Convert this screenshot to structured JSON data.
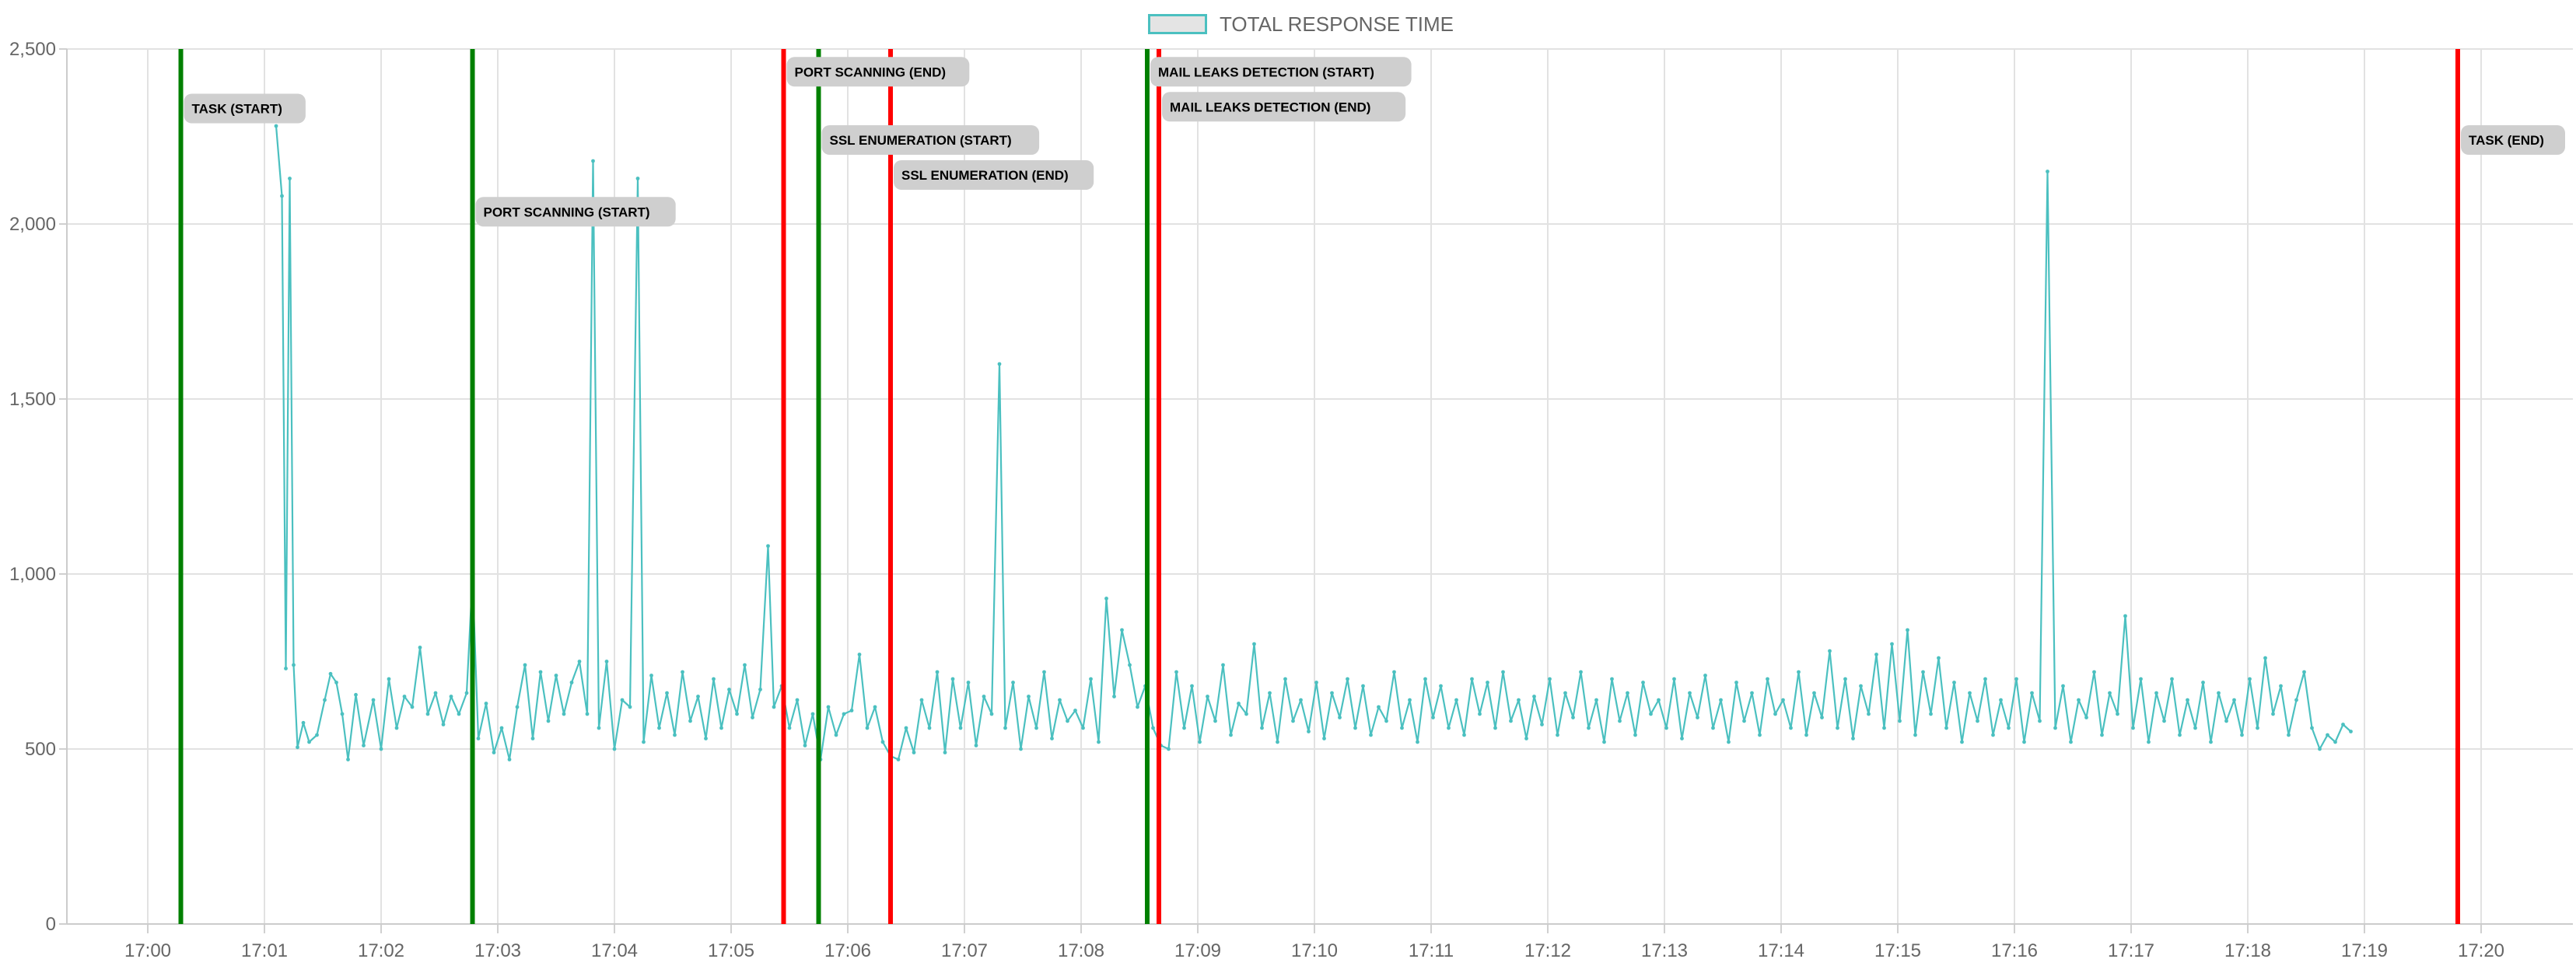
{
  "chart_data": {
    "type": "line",
    "title": "",
    "xlabel": "",
    "ylabel": "",
    "legend": {
      "position": "top-center",
      "entries": [
        "TOTAL RESPONSE TIME"
      ]
    },
    "grid": true,
    "x_range": [
      "17:00",
      "17:20"
    ],
    "ylim": [
      0,
      2500
    ],
    "x_tick_labels": [
      "17:00",
      "17:01",
      "17:02",
      "17:03",
      "17:04",
      "17:05",
      "17:06",
      "17:07",
      "17:08",
      "17:09",
      "17:10",
      "17:11",
      "17:12",
      "17:13",
      "17:14",
      "17:15",
      "17:16",
      "17:17",
      "17:18",
      "17:19",
      "17:20"
    ],
    "y_tick_labels": [
      "0",
      "500",
      "1,000",
      "1,500",
      "2,000",
      "2,500"
    ],
    "y_ticks": [
      0,
      500,
      1000,
      1500,
      2000,
      2500
    ],
    "series": [
      {
        "name": "TOTAL RESPONSE TIME",
        "color": "#4bc0c0",
        "points": [
          [
            "17:01:06",
            2280
          ],
          [
            "17:01:09",
            2080
          ],
          [
            "17:01:11",
            730
          ],
          [
            "17:01:13",
            2130
          ],
          [
            "17:01:15",
            740
          ],
          [
            "17:01:17",
            505
          ],
          [
            "17:01:20",
            575
          ],
          [
            "17:01:23",
            520
          ],
          [
            "17:01:27",
            540
          ],
          [
            "17:01:31",
            640
          ],
          [
            "17:01:34",
            715
          ],
          [
            "17:01:37",
            690
          ],
          [
            "17:01:40",
            600
          ],
          [
            "17:01:43",
            470
          ],
          [
            "17:01:47",
            655
          ],
          [
            "17:01:51",
            510
          ],
          [
            "17:01:56",
            640
          ],
          [
            "17:02:00",
            500
          ],
          [
            "17:02:04",
            700
          ],
          [
            "17:02:08",
            560
          ],
          [
            "17:02:12",
            650
          ],
          [
            "17:02:16",
            620
          ],
          [
            "17:02:20",
            790
          ],
          [
            "17:02:24",
            600
          ],
          [
            "17:02:28",
            660
          ],
          [
            "17:02:32",
            570
          ],
          [
            "17:02:36",
            650
          ],
          [
            "17:02:40",
            600
          ],
          [
            "17:02:44",
            660
          ],
          [
            "17:02:47",
            990
          ],
          [
            "17:02:50",
            530
          ],
          [
            "17:02:54",
            630
          ],
          [
            "17:02:58",
            490
          ],
          [
            "17:03:02",
            560
          ],
          [
            "17:03:06",
            470
          ],
          [
            "17:03:10",
            620
          ],
          [
            "17:03:14",
            740
          ],
          [
            "17:03:18",
            530
          ],
          [
            "17:03:22",
            720
          ],
          [
            "17:03:26",
            580
          ],
          [
            "17:03:30",
            710
          ],
          [
            "17:03:34",
            600
          ],
          [
            "17:03:38",
            690
          ],
          [
            "17:03:42",
            750
          ],
          [
            "17:03:46",
            600
          ],
          [
            "17:03:49",
            2180
          ],
          [
            "17:03:52",
            560
          ],
          [
            "17:03:56",
            750
          ],
          [
            "17:04:00",
            500
          ],
          [
            "17:04:04",
            640
          ],
          [
            "17:04:08",
            620
          ],
          [
            "17:04:12",
            2130
          ],
          [
            "17:04:15",
            520
          ],
          [
            "17:04:19",
            710
          ],
          [
            "17:04:23",
            560
          ],
          [
            "17:04:27",
            660
          ],
          [
            "17:04:31",
            540
          ],
          [
            "17:04:35",
            720
          ],
          [
            "17:04:39",
            580
          ],
          [
            "17:04:43",
            650
          ],
          [
            "17:04:47",
            530
          ],
          [
            "17:04:51",
            700
          ],
          [
            "17:04:55",
            560
          ],
          [
            "17:04:59",
            670
          ],
          [
            "17:05:03",
            600
          ],
          [
            "17:05:07",
            740
          ],
          [
            "17:05:11",
            590
          ],
          [
            "17:05:15",
            670
          ],
          [
            "17:05:19",
            1080
          ],
          [
            "17:05:22",
            620
          ],
          [
            "17:05:26",
            680
          ],
          [
            "17:05:30",
            560
          ],
          [
            "17:05:34",
            640
          ],
          [
            "17:05:38",
            510
          ],
          [
            "17:05:42",
            600
          ],
          [
            "17:05:46",
            470
          ],
          [
            "17:05:50",
            620
          ],
          [
            "17:05:54",
            540
          ],
          [
            "17:05:58",
            600
          ],
          [
            "17:06:02",
            610
          ],
          [
            "17:06:06",
            770
          ],
          [
            "17:06:10",
            560
          ],
          [
            "17:06:14",
            620
          ],
          [
            "17:06:18",
            520
          ],
          [
            "17:06:22",
            480
          ],
          [
            "17:06:26",
            470
          ],
          [
            "17:06:30",
            560
          ],
          [
            "17:06:34",
            490
          ],
          [
            "17:06:38",
            640
          ],
          [
            "17:06:42",
            560
          ],
          [
            "17:06:46",
            720
          ],
          [
            "17:06:50",
            490
          ],
          [
            "17:06:54",
            700
          ],
          [
            "17:06:58",
            560
          ],
          [
            "17:07:02",
            690
          ],
          [
            "17:07:06",
            510
          ],
          [
            "17:07:10",
            650
          ],
          [
            "17:07:14",
            600
          ],
          [
            "17:07:18",
            1600
          ],
          [
            "17:07:21",
            560
          ],
          [
            "17:07:25",
            690
          ],
          [
            "17:07:29",
            500
          ],
          [
            "17:07:33",
            650
          ],
          [
            "17:07:37",
            560
          ],
          [
            "17:07:41",
            720
          ],
          [
            "17:07:45",
            530
          ],
          [
            "17:07:49",
            640
          ],
          [
            "17:07:53",
            580
          ],
          [
            "17:07:57",
            610
          ],
          [
            "17:08:01",
            560
          ],
          [
            "17:08:05",
            700
          ],
          [
            "17:08:09",
            520
          ],
          [
            "17:08:13",
            930
          ],
          [
            "17:08:17",
            650
          ],
          [
            "17:08:21",
            840
          ],
          [
            "17:08:25",
            740
          ],
          [
            "17:08:29",
            620
          ],
          [
            "17:08:33",
            680
          ],
          [
            "17:08:37",
            560
          ],
          [
            "17:08:41",
            510
          ],
          [
            "17:08:45",
            500
          ],
          [
            "17:08:49",
            720
          ],
          [
            "17:08:53",
            560
          ],
          [
            "17:08:57",
            680
          ],
          [
            "17:09:01",
            520
          ],
          [
            "17:09:05",
            650
          ],
          [
            "17:09:09",
            580
          ],
          [
            "17:09:13",
            740
          ],
          [
            "17:09:17",
            540
          ],
          [
            "17:09:21",
            630
          ],
          [
            "17:09:25",
            600
          ],
          [
            "17:09:29",
            800
          ],
          [
            "17:09:33",
            560
          ],
          [
            "17:09:37",
            660
          ],
          [
            "17:09:41",
            520
          ],
          [
            "17:09:45",
            700
          ],
          [
            "17:09:49",
            580
          ],
          [
            "17:09:53",
            640
          ],
          [
            "17:09:57",
            550
          ],
          [
            "17:10:01",
            690
          ],
          [
            "17:10:05",
            530
          ],
          [
            "17:10:09",
            660
          ],
          [
            "17:10:13",
            590
          ],
          [
            "17:10:17",
            700
          ],
          [
            "17:10:21",
            560
          ],
          [
            "17:10:25",
            680
          ],
          [
            "17:10:29",
            540
          ],
          [
            "17:10:33",
            620
          ],
          [
            "17:10:37",
            580
          ],
          [
            "17:10:41",
            720
          ],
          [
            "17:10:45",
            560
          ],
          [
            "17:10:49",
            640
          ],
          [
            "17:10:53",
            520
          ],
          [
            "17:10:57",
            700
          ],
          [
            "17:11:01",
            590
          ],
          [
            "17:11:05",
            680
          ],
          [
            "17:11:09",
            560
          ],
          [
            "17:11:13",
            640
          ],
          [
            "17:11:17",
            540
          ],
          [
            "17:11:21",
            700
          ],
          [
            "17:11:25",
            600
          ],
          [
            "17:11:29",
            690
          ],
          [
            "17:11:33",
            560
          ],
          [
            "17:11:37",
            720
          ],
          [
            "17:11:41",
            580
          ],
          [
            "17:11:45",
            640
          ],
          [
            "17:11:49",
            530
          ],
          [
            "17:11:53",
            650
          ],
          [
            "17:11:57",
            570
          ],
          [
            "17:12:01",
            700
          ],
          [
            "17:12:05",
            540
          ],
          [
            "17:12:09",
            660
          ],
          [
            "17:12:13",
            590
          ],
          [
            "17:12:17",
            720
          ],
          [
            "17:12:21",
            560
          ],
          [
            "17:12:25",
            640
          ],
          [
            "17:12:29",
            520
          ],
          [
            "17:12:33",
            700
          ],
          [
            "17:12:37",
            580
          ],
          [
            "17:12:41",
            660
          ],
          [
            "17:12:45",
            540
          ],
          [
            "17:12:49",
            690
          ],
          [
            "17:12:53",
            600
          ],
          [
            "17:12:57",
            640
          ],
          [
            "17:13:01",
            560
          ],
          [
            "17:13:05",
            700
          ],
          [
            "17:13:09",
            530
          ],
          [
            "17:13:13",
            660
          ],
          [
            "17:13:17",
            590
          ],
          [
            "17:13:21",
            710
          ],
          [
            "17:13:25",
            560
          ],
          [
            "17:13:29",
            640
          ],
          [
            "17:13:33",
            520
          ],
          [
            "17:13:37",
            690
          ],
          [
            "17:13:41",
            580
          ],
          [
            "17:13:45",
            660
          ],
          [
            "17:13:49",
            540
          ],
          [
            "17:13:53",
            700
          ],
          [
            "17:13:57",
            600
          ],
          [
            "17:14:01",
            640
          ],
          [
            "17:14:05",
            560
          ],
          [
            "17:14:09",
            720
          ],
          [
            "17:14:13",
            540
          ],
          [
            "17:14:17",
            660
          ],
          [
            "17:14:21",
            590
          ],
          [
            "17:14:25",
            780
          ],
          [
            "17:14:29",
            560
          ],
          [
            "17:14:33",
            700
          ],
          [
            "17:14:37",
            530
          ],
          [
            "17:14:41",
            680
          ],
          [
            "17:14:45",
            600
          ],
          [
            "17:14:49",
            770
          ],
          [
            "17:14:53",
            560
          ],
          [
            "17:14:57",
            800
          ],
          [
            "17:15:01",
            580
          ],
          [
            "17:15:05",
            840
          ],
          [
            "17:15:09",
            540
          ],
          [
            "17:15:13",
            720
          ],
          [
            "17:15:17",
            600
          ],
          [
            "17:15:21",
            760
          ],
          [
            "17:15:25",
            560
          ],
          [
            "17:15:29",
            690
          ],
          [
            "17:15:33",
            520
          ],
          [
            "17:15:37",
            660
          ],
          [
            "17:15:41",
            580
          ],
          [
            "17:15:45",
            700
          ],
          [
            "17:15:49",
            540
          ],
          [
            "17:15:53",
            640
          ],
          [
            "17:15:57",
            560
          ],
          [
            "17:16:01",
            700
          ],
          [
            "17:16:05",
            520
          ],
          [
            "17:16:09",
            660
          ],
          [
            "17:16:13",
            580
          ],
          [
            "17:16:17",
            2150
          ],
          [
            "17:16:21",
            560
          ],
          [
            "17:16:25",
            680
          ],
          [
            "17:16:29",
            520
          ],
          [
            "17:16:33",
            640
          ],
          [
            "17:16:37",
            590
          ],
          [
            "17:16:41",
            720
          ],
          [
            "17:16:45",
            540
          ],
          [
            "17:16:49",
            660
          ],
          [
            "17:16:53",
            600
          ],
          [
            "17:16:57",
            880
          ],
          [
            "17:17:01",
            560
          ],
          [
            "17:17:05",
            700
          ],
          [
            "17:17:09",
            520
          ],
          [
            "17:17:13",
            660
          ],
          [
            "17:17:17",
            580
          ],
          [
            "17:17:21",
            700
          ],
          [
            "17:17:25",
            540
          ],
          [
            "17:17:29",
            640
          ],
          [
            "17:17:33",
            560
          ],
          [
            "17:17:37",
            690
          ],
          [
            "17:17:41",
            520
          ],
          [
            "17:17:45",
            660
          ],
          [
            "17:17:49",
            580
          ],
          [
            "17:17:53",
            640
          ],
          [
            "17:17:57",
            540
          ],
          [
            "17:18:01",
            700
          ],
          [
            "17:18:05",
            560
          ],
          [
            "17:18:09",
            760
          ],
          [
            "17:18:13",
            600
          ],
          [
            "17:18:17",
            680
          ],
          [
            "17:18:21",
            540
          ],
          [
            "17:18:25",
            640
          ],
          [
            "17:18:29",
            720
          ],
          [
            "17:18:33",
            560
          ],
          [
            "17:18:37",
            500
          ],
          [
            "17:18:41",
            540
          ],
          [
            "17:18:45",
            520
          ],
          [
            "17:18:49",
            570
          ],
          [
            "17:18:53",
            550
          ]
        ]
      }
    ],
    "annotations": [
      {
        "label": "TASK (START)",
        "time": "17:00:17",
        "color": "#008000",
        "label_value": 2330
      },
      {
        "label": "PORT SCANNING (START)",
        "time": "17:02:47",
        "color": "#008000",
        "label_value": 2035
      },
      {
        "label": "PORT SCANNING (END)",
        "time": "17:05:27",
        "color": "#ff0000",
        "label_value": 2435
      },
      {
        "label": "SSL ENUMERATION (START)",
        "time": "17:05:45",
        "color": "#008000",
        "label_value": 2240
      },
      {
        "label": "SSL ENUMERATION (END)",
        "time": "17:06:22",
        "color": "#ff0000",
        "label_value": 2140
      },
      {
        "label": "MAIL LEAKS DETECTION (START)",
        "time": "17:08:34",
        "color": "#008000",
        "label_value": 2435
      },
      {
        "label": "MAIL LEAKS DETECTION (END)",
        "time": "17:08:40",
        "color": "#ff0000",
        "label_value": 2335
      },
      {
        "label": "TASK (END)",
        "time": "17:19:48",
        "color": "#ff0000",
        "label_value": 2240
      }
    ]
  }
}
